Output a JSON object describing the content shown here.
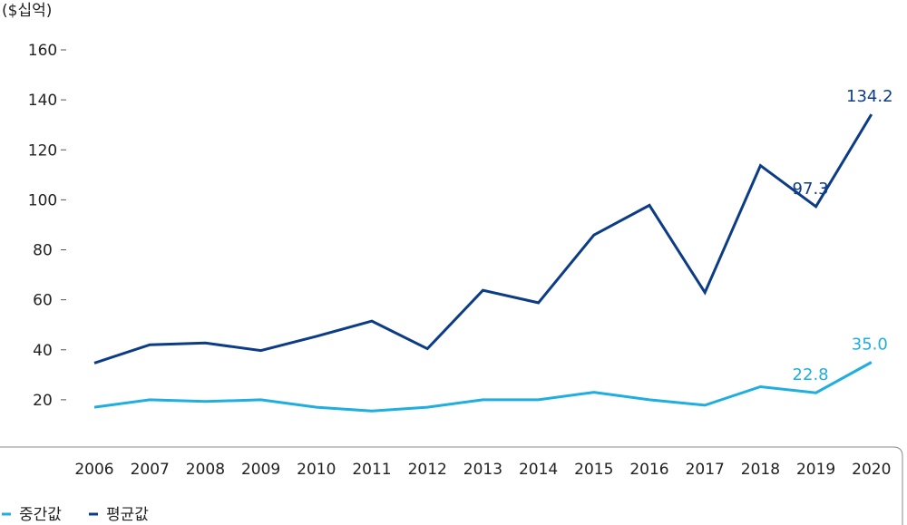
{
  "chart_data": {
    "type": "line",
    "unit_label": "($십억)",
    "x": [
      "2006",
      "2007",
      "2008",
      "2009",
      "2010",
      "2011",
      "2012",
      "2013",
      "2014",
      "2015",
      "2016",
      "2017",
      "2018",
      "2019",
      "2020"
    ],
    "ylim": [
      0,
      160
    ],
    "y_ticks": [
      "20",
      "40",
      "60",
      "80",
      "100",
      "120",
      "140",
      "160"
    ],
    "grid": false,
    "legend_position": "bottom-left",
    "series": [
      {
        "name": "중간값",
        "color": "#1eaee0",
        "values": [
          17,
          20,
          19.3,
          20,
          17,
          15.5,
          17,
          20,
          20,
          23,
          20,
          17.8,
          25.2,
          22.8,
          35.0
        ]
      },
      {
        "name": "평균값",
        "color": "#0d3c87",
        "values": [
          34.7,
          42,
          42.7,
          39.7,
          45.4,
          51.5,
          40.4,
          63.8,
          58.8,
          85.9,
          97.8,
          62.9,
          113.7,
          97.3,
          134.2
        ]
      }
    ],
    "annotations": [
      {
        "series": 0,
        "index": 13,
        "text": "22.8"
      },
      {
        "series": 0,
        "index": 14,
        "text": "35.0"
      },
      {
        "series": 1,
        "index": 13,
        "text": "97.3"
      },
      {
        "series": 1,
        "index": 14,
        "text": "134.2"
      }
    ]
  }
}
